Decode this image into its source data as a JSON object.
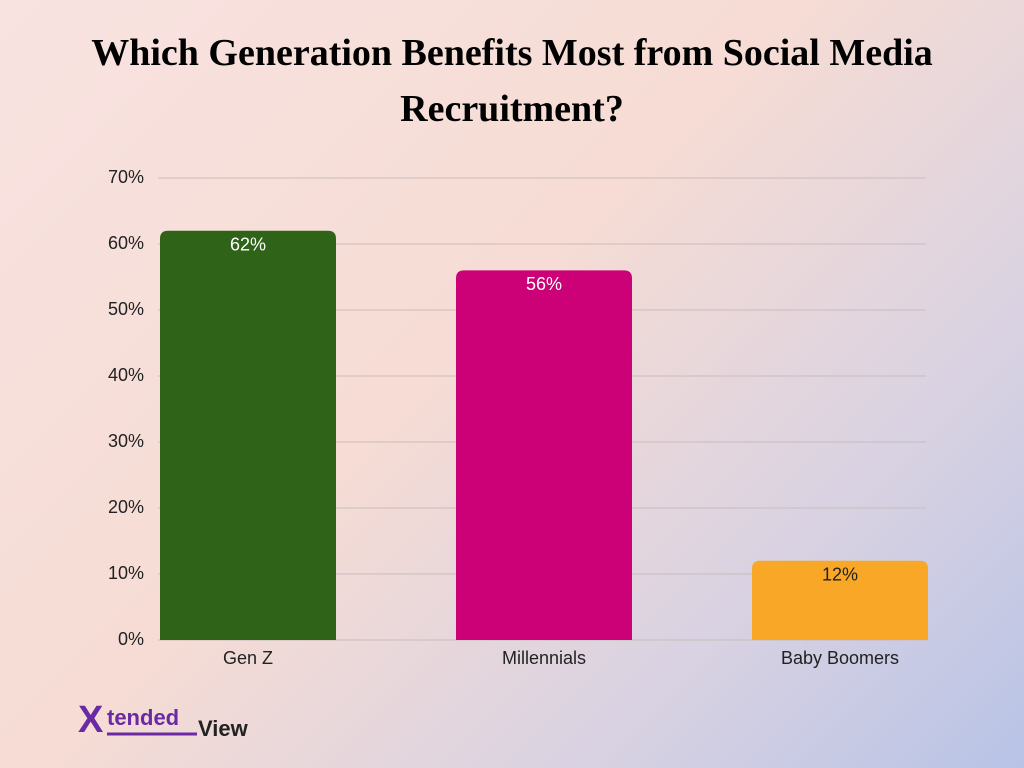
{
  "chart_data": {
    "type": "bar",
    "title": "Which Generation Benefits Most from Social Media Recruitment?",
    "categories": [
      "Gen Z",
      "Millennials",
      "Baby Boomers"
    ],
    "values": [
      62,
      56,
      12
    ],
    "value_labels": [
      "62%",
      "56%",
      "12%"
    ],
    "colors": [
      "#2f6318",
      "#cc0077",
      "#f9a727"
    ],
    "value_label_colors": [
      "#ffffff",
      "#ffffff",
      "#222222"
    ],
    "ylim": [
      0,
      70
    ],
    "yticks": [
      {
        "value": 0,
        "label": "0%"
      },
      {
        "value": 10,
        "label": "10%"
      },
      {
        "value": 20,
        "label": "20%"
      },
      {
        "value": 30,
        "label": "30%"
      },
      {
        "value": 40,
        "label": "40%"
      },
      {
        "value": 50,
        "label": "50%"
      },
      {
        "value": 60,
        "label": "60%"
      },
      {
        "value": 70,
        "label": "70%"
      }
    ],
    "grid": true
  },
  "logo": {
    "mark": "X",
    "part1": "tended",
    "part2": "View"
  }
}
